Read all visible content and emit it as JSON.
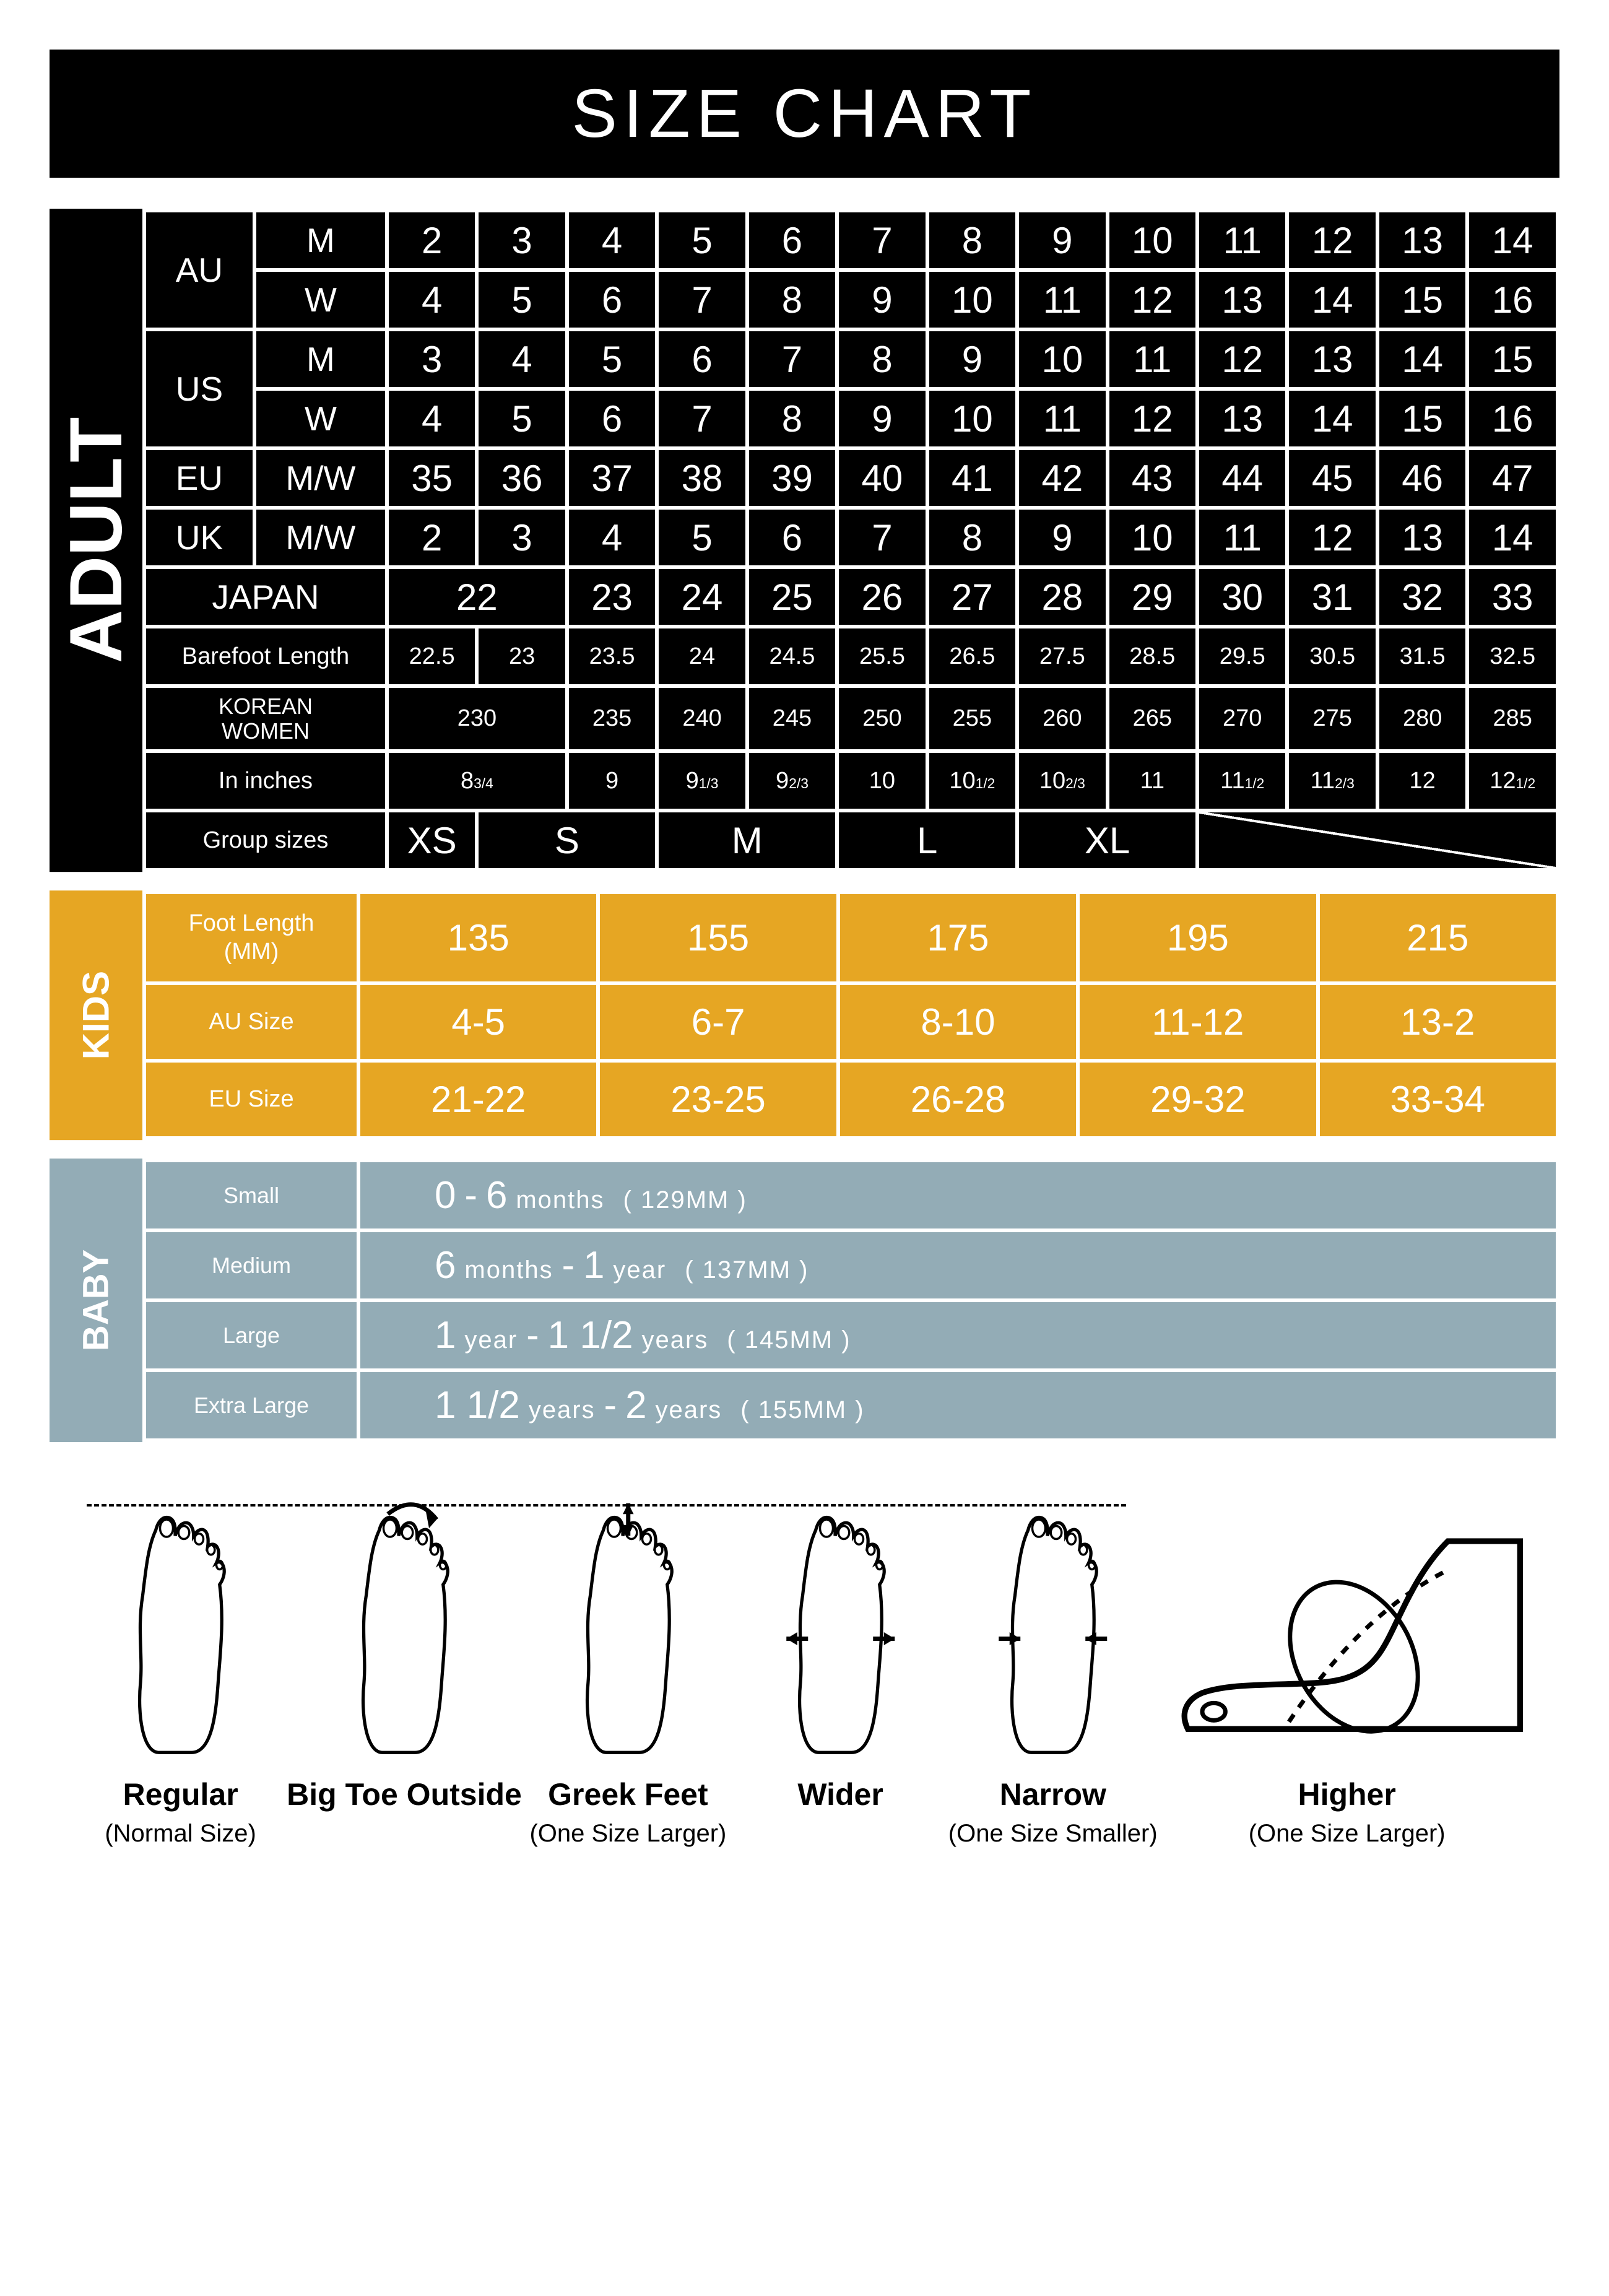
{
  "title": "SIZE CHART",
  "adult": {
    "label": "ADULT",
    "regions": [
      {
        "name": "AU",
        "rows": [
          {
            "gender": "M",
            "sizes": [
              "2",
              "3",
              "4",
              "5",
              "6",
              "7",
              "8",
              "9",
              "10",
              "11",
              "12",
              "13",
              "14"
            ]
          },
          {
            "gender": "W",
            "sizes": [
              "4",
              "5",
              "6",
              "7",
              "8",
              "9",
              "10",
              "11",
              "12",
              "13",
              "14",
              "15",
              "16"
            ]
          }
        ]
      },
      {
        "name": "US",
        "rows": [
          {
            "gender": "M",
            "sizes": [
              "3",
              "4",
              "5",
              "6",
              "7",
              "8",
              "9",
              "10",
              "11",
              "12",
              "13",
              "14",
              "15"
            ]
          },
          {
            "gender": "W",
            "sizes": [
              "4",
              "5",
              "6",
              "7",
              "8",
              "9",
              "10",
              "11",
              "12",
              "13",
              "14",
              "15",
              "16"
            ]
          }
        ]
      },
      {
        "name": "EU",
        "rows": [
          {
            "gender": "M/W",
            "sizes": [
              "35",
              "36",
              "37",
              "38",
              "39",
              "40",
              "41",
              "42",
              "43",
              "44",
              "45",
              "46",
              "47"
            ]
          }
        ]
      },
      {
        "name": "UK",
        "rows": [
          {
            "gender": "M/W",
            "sizes": [
              "2",
              "3",
              "4",
              "5",
              "6",
              "7",
              "8",
              "9",
              "10",
              "11",
              "12",
              "13",
              "14"
            ]
          }
        ]
      }
    ],
    "japan": {
      "label": "JAPAN",
      "first_span": "22",
      "sizes": [
        "23",
        "24",
        "25",
        "26",
        "27",
        "28",
        "29",
        "30",
        "31",
        "32",
        "33"
      ]
    },
    "barefoot": {
      "label": "Barefoot Length",
      "sizes": [
        "22.5",
        "23",
        "23.5",
        "24",
        "24.5",
        "25.5",
        "26.5",
        "27.5",
        "28.5",
        "29.5",
        "30.5",
        "31.5",
        "32.5"
      ]
    },
    "korean": {
      "label": "KOREAN\nWOMEN",
      "first_span": "230",
      "sizes": [
        "235",
        "240",
        "245",
        "250",
        "255",
        "260",
        "265",
        "270",
        "275",
        "280",
        "285"
      ]
    },
    "inches": {
      "label": "In inches",
      "first_span_html": "8<sub>3/4</sub>",
      "sizes_html": [
        "9",
        "9<sub>1/3</sub>",
        "9<sub>2/3</sub>",
        "10",
        "10<sub>1/2</sub>",
        "10<sub>2/3</sub>",
        "11",
        "11<sub>1/2</sub>",
        "11<sub>2/3</sub>",
        "12",
        "12<sub>1/2</sub>"
      ]
    },
    "group": {
      "label": "Group sizes",
      "cells": [
        {
          "text": "XS",
          "span": 1
        },
        {
          "text": "S",
          "span": 2
        },
        {
          "text": "M",
          "span": 2
        },
        {
          "text": "L",
          "span": 2
        },
        {
          "text": "XL",
          "span": 2
        },
        {
          "text": "",
          "span": 4,
          "diag": true
        }
      ]
    }
  },
  "kids": {
    "label": "KIDS",
    "rows": [
      {
        "label": "Foot Length\n(MM)",
        "values": [
          "135",
          "155",
          "175",
          "195",
          "215"
        ]
      },
      {
        "label": "AU Size",
        "values": [
          "4-5",
          "6-7",
          "8-10",
          "11-12",
          "13-2"
        ]
      },
      {
        "label": "EU Size",
        "values": [
          "21-22",
          "23-25",
          "26-28",
          "29-32",
          "33-34"
        ]
      }
    ]
  },
  "baby": {
    "label": "BABY",
    "rows": [
      {
        "label": "Small",
        "big1": "0",
        "dash": "-",
        "big2": "6",
        "unit": "months",
        "paren": "( 129MM )"
      },
      {
        "label": "Medium",
        "big1": "6",
        "unit1": "months",
        "dash": "-",
        "big2": "1",
        "unit": "year",
        "paren": "( 137MM )"
      },
      {
        "label": "Large",
        "big1": "1",
        "unit1": "year",
        "dash": "-",
        "big2": "1 1/2",
        "unit": "years",
        "paren": "( 145MM )"
      },
      {
        "label": "Extra Large",
        "big1": "1 1/2",
        "unit1": "years",
        "dash": "-",
        "big2": "2",
        "unit": "years",
        "paren": "( 155MM )"
      }
    ]
  },
  "feet": {
    "types": [
      {
        "title": "Regular",
        "sub": "(Normal Size)",
        "kind": "top"
      },
      {
        "title": "Big Toe Outside",
        "sub": "",
        "kind": "top"
      },
      {
        "title": "Greek Feet",
        "sub": "(One Size Larger)",
        "kind": "top",
        "bracket_center": true
      },
      {
        "title": "Wider",
        "sub": "",
        "kind": "top",
        "arrows": "out"
      },
      {
        "title": "Narrow",
        "sub": "(One Size Smaller)",
        "kind": "top",
        "arrows": "in"
      },
      {
        "title": "Higher",
        "sub": "(One Size Larger)",
        "kind": "side"
      }
    ]
  },
  "colors": {
    "black": "#000000",
    "white": "#ffffff",
    "kids": "#e6a623",
    "baby": "#93acb6"
  }
}
